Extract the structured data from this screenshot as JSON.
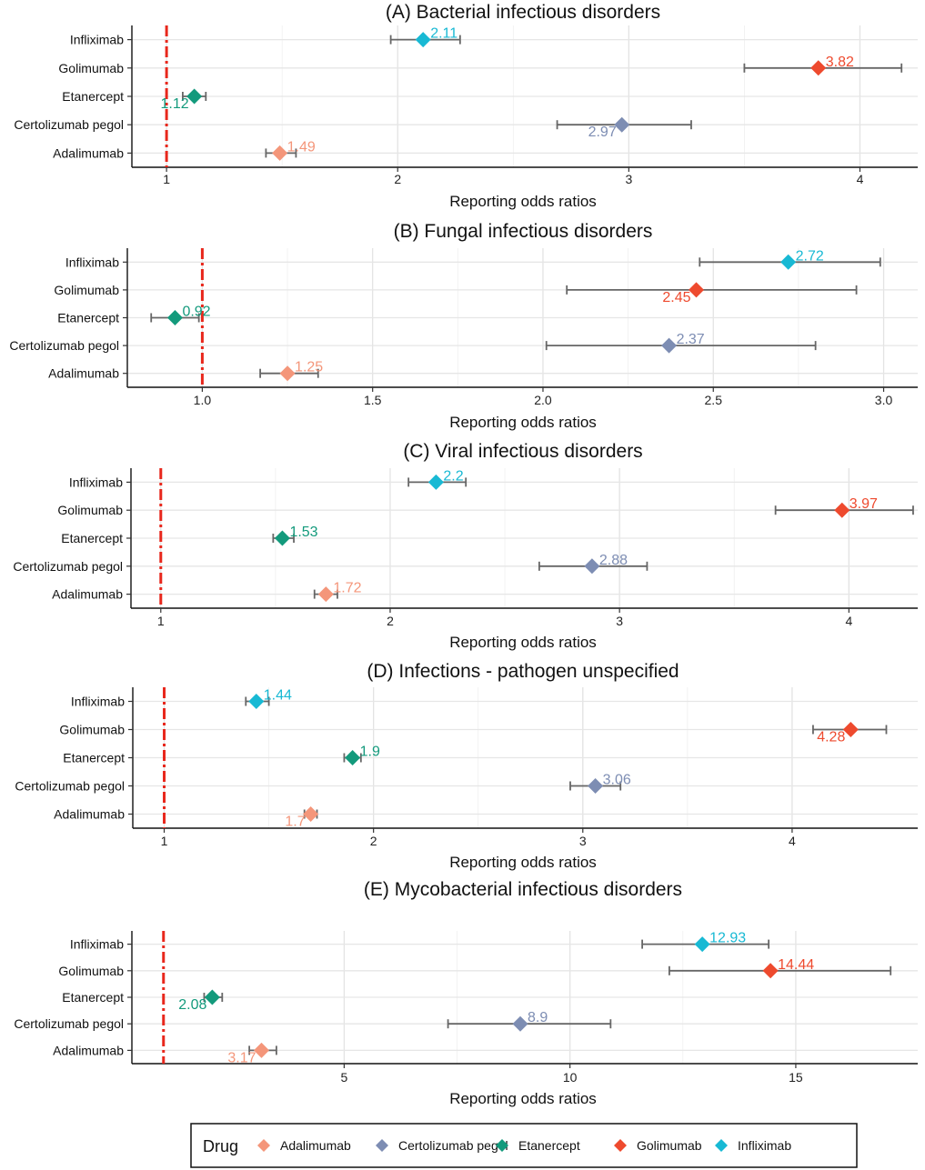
{
  "chart_data": [
    {
      "type": "forest",
      "title": "(A) Bacterial infectious disorders",
      "xlabel": "Reporting odds ratios",
      "xlim": [
        0.85,
        4.25
      ],
      "ticks": [
        1,
        2,
        3,
        4
      ],
      "tick_labels": [
        "1",
        "2",
        "3",
        "4"
      ],
      "categories": [
        "Infliximab",
        "Golimumab",
        "Etanercept",
        "Certolizumab pegol",
        "Adalimumab"
      ],
      "values": [
        2.11,
        3.82,
        1.12,
        2.97,
        1.49
      ],
      "lower": [
        1.97,
        3.5,
        1.07,
        2.69,
        1.43
      ],
      "upper": [
        2.27,
        4.18,
        1.17,
        3.27,
        1.56
      ],
      "label_side": [
        "right",
        "right",
        "left",
        "left",
        "right"
      ],
      "value_labels": [
        "2.11",
        "3.82",
        "1.12",
        "2.97",
        "1.49"
      ]
    },
    {
      "type": "forest",
      "title": "(B) Fungal infectious disorders",
      "xlabel": "Reporting odds ratios",
      "xlim": [
        0.78,
        3.1
      ],
      "ticks": [
        1.0,
        1.5,
        2.0,
        2.5,
        3.0
      ],
      "tick_labels": [
        "1.0",
        "1.5",
        "2.0",
        "2.5",
        "3.0"
      ],
      "categories": [
        "Infliximab",
        "Golimumab",
        "Etanercept",
        "Certolizumab pegol",
        "Adalimumab"
      ],
      "values": [
        2.72,
        2.45,
        0.92,
        2.37,
        1.25
      ],
      "lower": [
        2.46,
        2.07,
        0.85,
        2.01,
        1.17
      ],
      "upper": [
        2.99,
        2.92,
        0.99,
        2.8,
        1.34
      ],
      "label_side": [
        "right",
        "left",
        "right",
        "right",
        "right"
      ],
      "value_labels": [
        "2.72",
        "2.45",
        "0.92",
        "2.37",
        "1.25"
      ]
    },
    {
      "type": "forest",
      "title": "(C) Viral infectious disorders",
      "xlabel": "Reporting odds ratios",
      "xlim": [
        0.87,
        4.3
      ],
      "ticks": [
        1,
        2,
        3,
        4
      ],
      "tick_labels": [
        "1",
        "2",
        "3",
        "4"
      ],
      "categories": [
        "Infliximab",
        "Golimumab",
        "Etanercept",
        "Certolizumab pegol",
        "Adalimumab"
      ],
      "values": [
        2.2,
        3.97,
        1.53,
        2.88,
        1.72
      ],
      "lower": [
        2.08,
        3.68,
        1.49,
        2.65,
        1.67
      ],
      "upper": [
        2.33,
        4.28,
        1.58,
        3.12,
        1.77
      ],
      "label_side": [
        "right",
        "right",
        "right",
        "right",
        "right"
      ],
      "value_labels": [
        "2.2",
        "3.97",
        "1.53",
        "2.88",
        "1.72"
      ]
    },
    {
      "type": "forest",
      "title": "(D) Infections - pathogen unspecified",
      "xlabel": "Reporting odds ratios",
      "xlim": [
        0.85,
        4.6
      ],
      "ticks": [
        1,
        2,
        3,
        4
      ],
      "tick_labels": [
        "1",
        "2",
        "3",
        "4"
      ],
      "categories": [
        "Infliximab",
        "Golimumab",
        "Etanercept",
        "Certolizumab pegol",
        "Adalimumab"
      ],
      "values": [
        1.44,
        4.28,
        1.9,
        3.06,
        1.7
      ],
      "lower": [
        1.39,
        4.1,
        1.86,
        2.94,
        1.67
      ],
      "upper": [
        1.5,
        4.45,
        1.94,
        3.18,
        1.73
      ],
      "label_side": [
        "right",
        "left",
        "right",
        "right",
        "left"
      ],
      "value_labels": [
        "1.44",
        "4.28",
        "1.9",
        "3.06",
        "1.7"
      ]
    },
    {
      "type": "forest",
      "title": "(E) Mycobacterial infectious disorders",
      "xlabel": "Reporting odds ratios",
      "xlim": [
        0.3,
        17.7
      ],
      "ticks": [
        5,
        10,
        15
      ],
      "tick_labels": [
        "5",
        "10",
        "15"
      ],
      "categories": [
        "Infliximab",
        "Golimumab",
        "Etanercept",
        "Certolizumab pegol",
        "Adalimumab"
      ],
      "values": [
        12.93,
        14.44,
        2.08,
        8.9,
        3.17
      ],
      "lower": [
        11.6,
        12.2,
        1.9,
        7.3,
        2.9
      ],
      "upper": [
        14.4,
        17.1,
        2.3,
        10.9,
        3.5
      ],
      "label_side": [
        "right",
        "right",
        "left",
        "right",
        "left"
      ],
      "value_labels": [
        "12.93",
        "14.44",
        "2.08",
        "8.9",
        "3.17"
      ]
    }
  ],
  "reference_line": 1,
  "colors": {
    "Adalimumab": "#f4967a",
    "Certolizumab pegol": "#7d8db3",
    "Etanercept": "#139a7c",
    "Golimumab": "#ee4a2e",
    "Infliximab": "#18b9d4",
    "reference": "#e8271c"
  },
  "legend": {
    "title": "Drug",
    "items": [
      "Adalimumab",
      "Certolizumab pegol",
      "Etanercept",
      "Golimumab",
      "Infliximab"
    ]
  }
}
